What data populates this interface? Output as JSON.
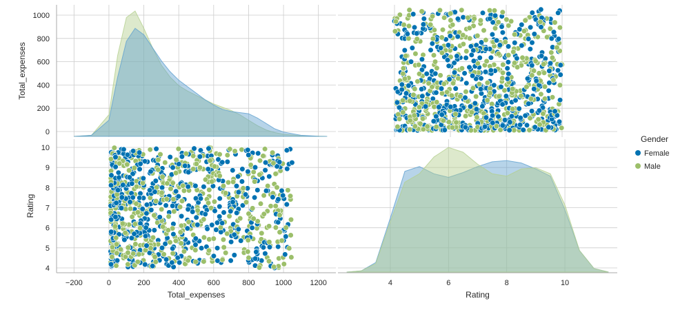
{
  "chart_data": {
    "type": "pairplot",
    "hue": "Gender",
    "legend": {
      "title": "Gender",
      "position": "right",
      "entries": [
        {
          "label": "Female",
          "color": "#0072b2"
        },
        {
          "label": "Male",
          "color": "#9cbf6a"
        }
      ]
    },
    "variables": [
      "Total_expenses",
      "Rating"
    ],
    "axes": {
      "Total_expenses": {
        "label": "Total_expenses",
        "range": [
          -300,
          1300
        ],
        "xticks": [
          -200,
          0,
          200,
          400,
          600,
          800,
          1000,
          1200
        ],
        "scatter_range": [
          -50,
          1100
        ],
        "yticks": [
          0,
          200,
          400,
          600,
          800,
          1000
        ]
      },
      "Rating": {
        "label": "Rating",
        "range": [
          2.2,
          11.8
        ],
        "xticks": [
          4,
          6,
          8,
          10
        ],
        "scatter_range": [
          3.8,
          10.2
        ],
        "yticks": [
          4,
          5,
          6,
          7,
          8,
          9,
          10
        ]
      }
    },
    "kde": {
      "Total_expenses": {
        "x": [
          -200,
          -100,
          0,
          50,
          100,
          150,
          200,
          250,
          300,
          350,
          400,
          450,
          500,
          550,
          600,
          650,
          700,
          750,
          800,
          850,
          900,
          950,
          1000,
          1100,
          1200,
          1250
        ],
        "Female": [
          0,
          0.01,
          0.15,
          0.55,
          0.88,
          1.0,
          0.94,
          0.82,
          0.7,
          0.6,
          0.52,
          0.46,
          0.4,
          0.34,
          0.29,
          0.25,
          0.23,
          0.22,
          0.21,
          0.17,
          0.12,
          0.07,
          0.04,
          0.01,
          0.002,
          0
        ],
        "Male": [
          0,
          0.01,
          0.2,
          0.75,
          1.1,
          1.16,
          1.0,
          0.82,
          0.66,
          0.55,
          0.47,
          0.42,
          0.38,
          0.34,
          0.3,
          0.27,
          0.24,
          0.2,
          0.15,
          0.1,
          0.06,
          0.035,
          0.02,
          0.006,
          0.001,
          0
        ]
      },
      "Rating": {
        "x": [
          2.5,
          3.0,
          3.5,
          4.0,
          4.5,
          5.0,
          5.5,
          6.0,
          6.5,
          7.0,
          7.5,
          8.0,
          8.5,
          9.0,
          9.5,
          10.0,
          10.5,
          11.0,
          11.5
        ],
        "Female": [
          0,
          0.01,
          0.08,
          0.45,
          0.84,
          0.88,
          0.82,
          0.79,
          0.83,
          0.88,
          0.92,
          0.93,
          0.91,
          0.86,
          0.8,
          0.52,
          0.18,
          0.03,
          0
        ],
        "Male": [
          0,
          0.01,
          0.07,
          0.42,
          0.75,
          0.82,
          0.96,
          1.04,
          1.0,
          0.9,
          0.82,
          0.8,
          0.86,
          0.87,
          0.82,
          0.56,
          0.18,
          0.03,
          0
        ]
      }
    },
    "scatter": {
      "n_points": 1000,
      "female_share": 0.5,
      "total_expenses_range": [
        10,
        1050
      ],
      "rating_range": [
        4.0,
        10.0
      ],
      "note": "points are randomly distributed within the ranges shown; exact values not readable"
    },
    "colors": {
      "female": "#0072b2",
      "male": "#9cbf6a",
      "female_fill": "#5fa0cf",
      "male_fill": "#b4cf8e",
      "grid": "#cccccc",
      "background": "#ffffff"
    }
  }
}
